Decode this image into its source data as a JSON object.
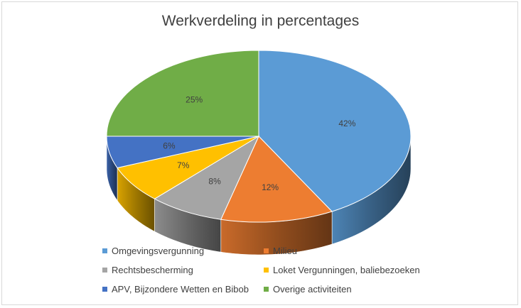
{
  "chart_data": {
    "type": "pie",
    "title": "Werkverdeling in percentages",
    "categories": [
      "Omgevingsvergunning",
      "Milieu",
      "Rechtsbescherming",
      "Loket Vergunningen, baliebezoeken",
      "APV, Bijzondere Wetten en Bibob",
      "Overige activiteiten"
    ],
    "values": [
      42,
      12,
      8,
      7,
      6,
      25
    ],
    "value_labels": [
      "42%",
      "12%",
      "8%",
      "7%",
      "6%",
      "25%"
    ],
    "colors": [
      "#5b9bd5",
      "#ed7d31",
      "#a5a5a5",
      "#ffc000",
      "#4472c4",
      "#70ad47"
    ],
    "style": "3d",
    "legend_position": "bottom"
  }
}
